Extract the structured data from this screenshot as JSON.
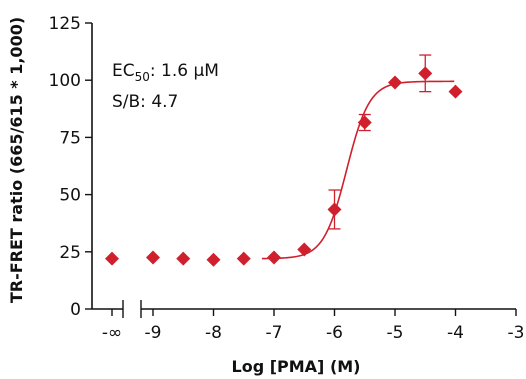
{
  "chart_data": {
    "type": "scatter",
    "title": "",
    "xlabel": "Log [PMA] (M)",
    "ylabel": "TR-FRET ratio (665/615 * 1,000)",
    "xlim": [
      -10,
      -3
    ],
    "ylim": [
      0,
      125
    ],
    "x_ticks": [
      "-∞",
      "-9",
      "-8",
      "-7",
      "-6",
      "-5",
      "-4",
      "-3"
    ],
    "y_ticks": [
      "0",
      "25",
      "50",
      "75",
      "100",
      "125"
    ],
    "axis_break": "between -∞ and -9",
    "grid": false,
    "legend": "none",
    "series": [
      {
        "marker": "diamond",
        "color": "#d0202e",
        "x": [
          "-∞",
          -9,
          -8.5,
          -8,
          -7.5,
          -7,
          -6.5,
          -6,
          -5.5,
          -5,
          -4.5,
          -4
        ],
        "y": [
          22,
          22.5,
          22,
          21.5,
          22,
          22.5,
          26,
          43.5,
          81.5,
          99,
          103,
          95
        ],
        "error": [
          0,
          0,
          0,
          0,
          0,
          0,
          0,
          8.5,
          3.5,
          0,
          8,
          0
        ]
      }
    ],
    "fit": {
      "type": "sigmoidal dose-response",
      "bottom": 22,
      "top": 99.5,
      "logEC50": -5.8,
      "hill": 2.3,
      "color": "#d0202e"
    },
    "annotations": {
      "ec50_prefix": "EC",
      "ec50_sub": "50",
      "ec50_value": ": 1.6 µM",
      "sb": "S/B: 4.7"
    }
  }
}
